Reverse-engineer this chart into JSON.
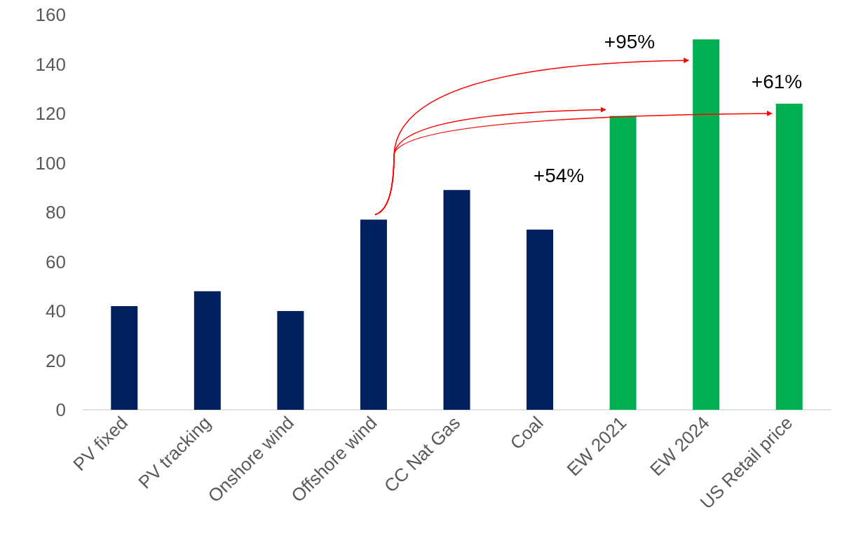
{
  "chart_data": {
    "type": "bar",
    "categories": [
      "PV fixed",
      "PV tracking",
      "Onshore wind",
      "Offshore wind",
      "CC Nat Gas",
      "Coal",
      "EW 2021",
      "EW 2024",
      "US Retail price"
    ],
    "values": [
      42,
      48,
      40,
      77,
      89,
      73,
      119,
      150,
      124
    ],
    "colors": [
      "#002060",
      "#002060",
      "#002060",
      "#002060",
      "#002060",
      "#002060",
      "#00b050",
      "#00b050",
      "#00b050"
    ],
    "ylim": [
      0,
      160
    ],
    "yticks": [
      0,
      20,
      40,
      60,
      80,
      100,
      120,
      140,
      160
    ],
    "grid": false,
    "annotations": [
      "+95%",
      "+61%",
      "+54%"
    ]
  }
}
